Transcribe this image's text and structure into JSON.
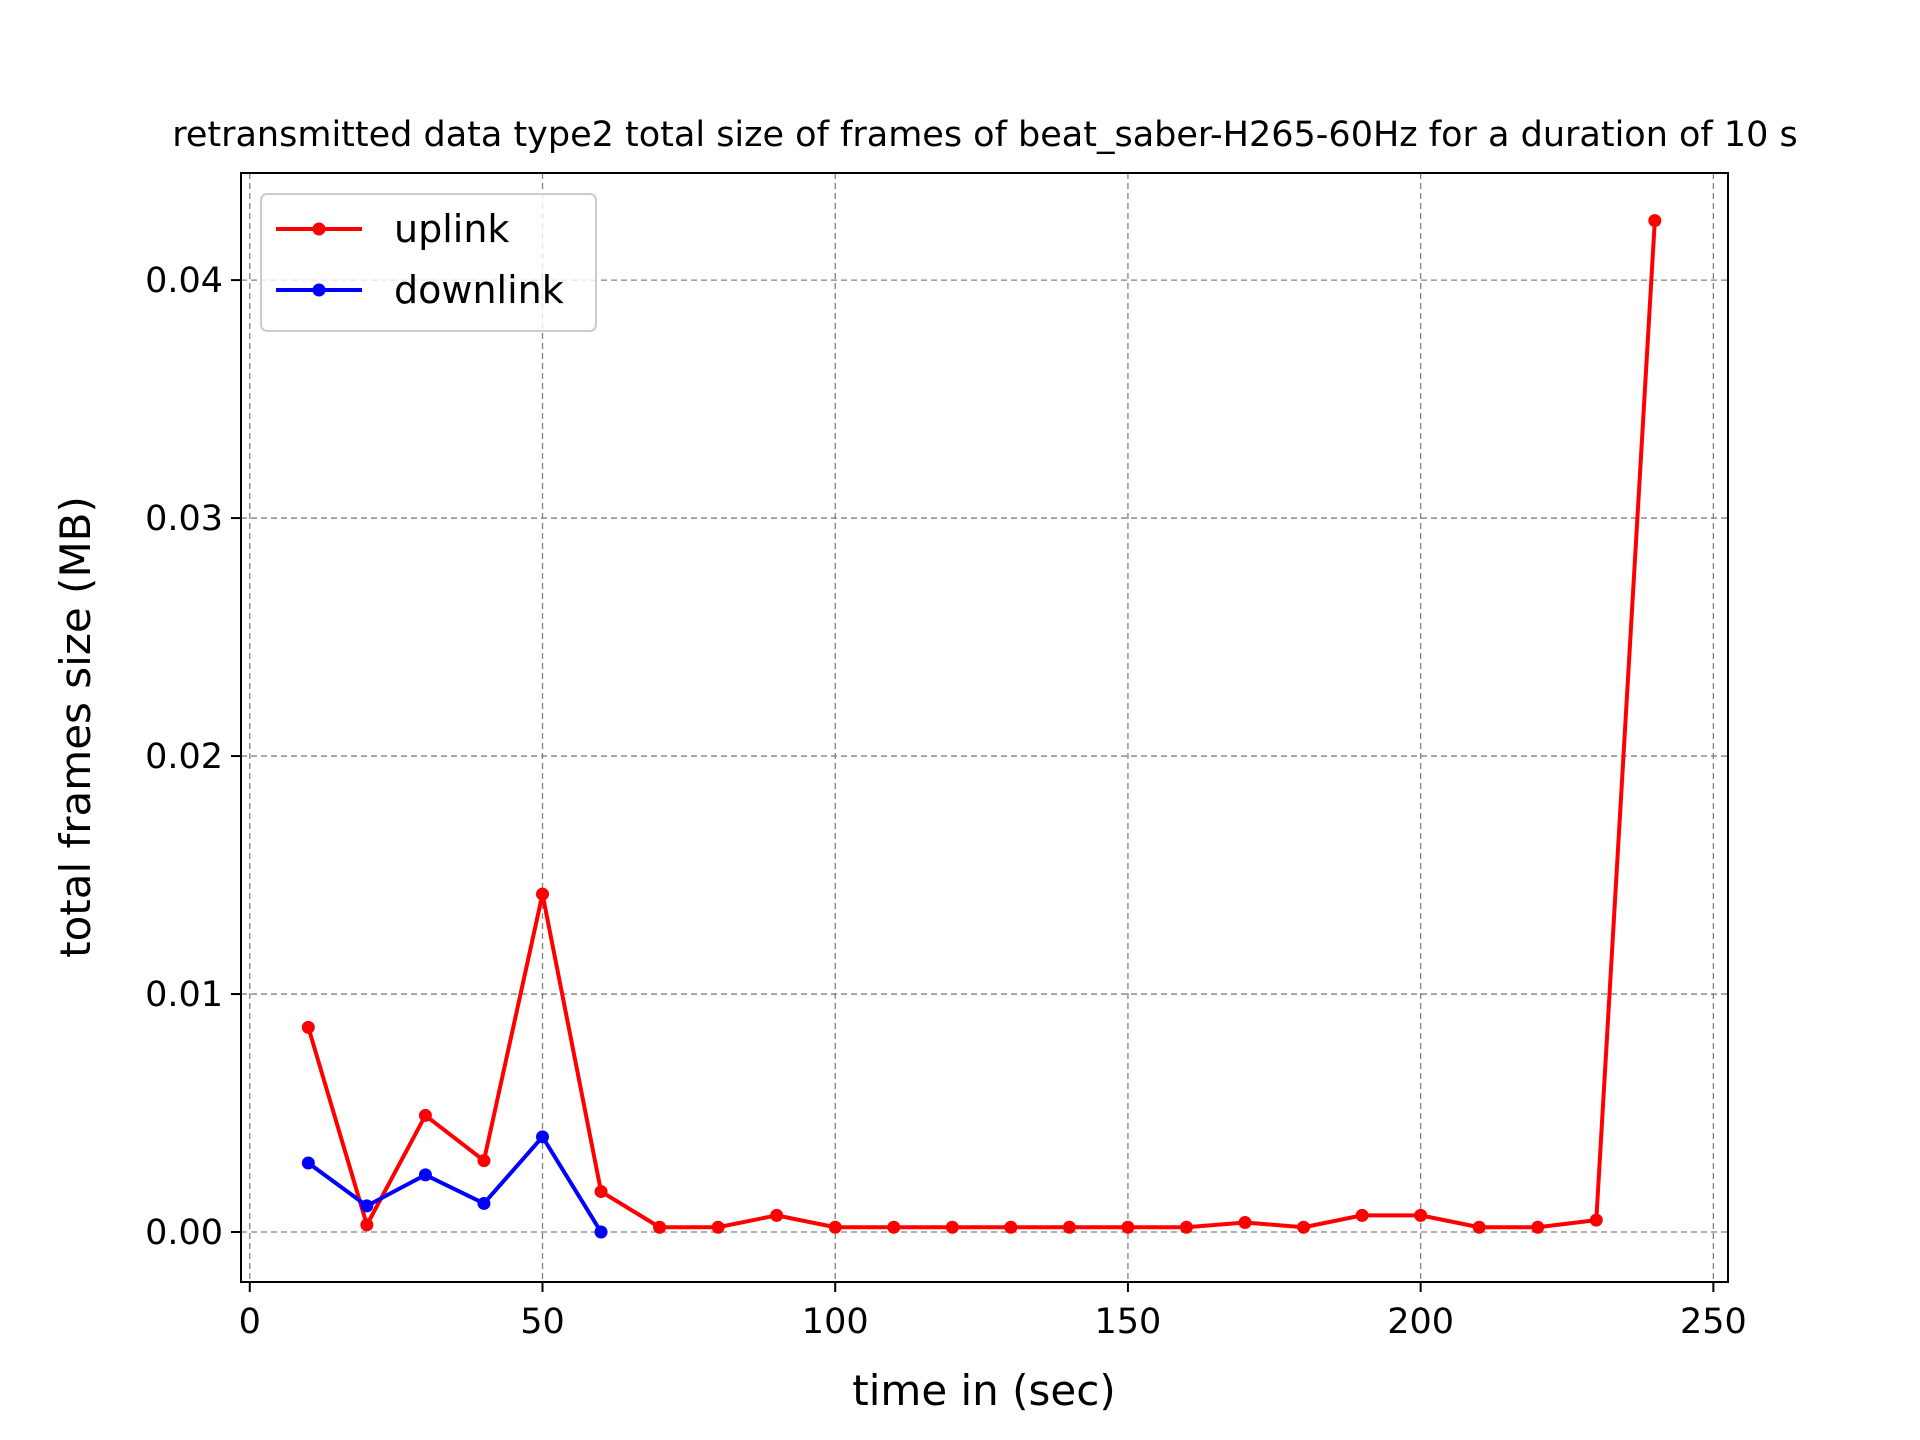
{
  "chart_data": {
    "type": "line",
    "title": "retransmitted data type2 total size of frames of beat_saber-H265-60Hz for a duration of 10 s",
    "xlabel": "time in (sec)",
    "ylabel": "total frames size (MB)",
    "xlim": [
      -1.5,
      252.5
    ],
    "ylim": [
      -0.0021,
      0.0445
    ],
    "xticks": [
      0,
      50,
      100,
      150,
      200,
      250
    ],
    "xtick_labels": [
      "0",
      "50",
      "100",
      "150",
      "200",
      "250"
    ],
    "yticks": [
      0.0,
      0.01,
      0.02,
      0.03,
      0.04
    ],
    "ytick_labels": [
      "0.00",
      "0.01",
      "0.02",
      "0.03",
      "0.04"
    ],
    "grid": true,
    "legend_position": "top-left",
    "series": [
      {
        "name": "uplink",
        "color": "#ff0000",
        "x": [
          10,
          20,
          30,
          40,
          50,
          60,
          70,
          80,
          90,
          100,
          110,
          120,
          130,
          140,
          150,
          160,
          170,
          180,
          190,
          200,
          210,
          220,
          230,
          240
        ],
        "y": [
          0.0086,
          0.0003,
          0.0049,
          0.003,
          0.0142,
          0.0017,
          0.0002,
          0.0002,
          0.0007,
          0.0002,
          0.0002,
          0.0002,
          0.0002,
          0.0002,
          0.0002,
          0.0002,
          0.0004,
          0.0002,
          0.0007,
          0.0007,
          0.0002,
          0.0002,
          0.0005,
          0.0425
        ]
      },
      {
        "name": "downlink",
        "color": "#0000ff",
        "x": [
          10,
          20,
          30,
          40,
          50,
          60
        ],
        "y": [
          0.0029,
          0.0011,
          0.0024,
          0.0012,
          0.004,
          0.0
        ]
      }
    ]
  }
}
